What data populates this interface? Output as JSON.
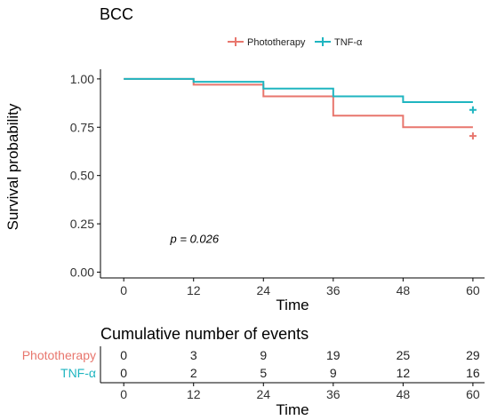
{
  "chart_data": [
    {
      "type": "line",
      "subtype": "kaplan-meier",
      "title": "BCC",
      "xlabel": "Time",
      "ylabel": "Survival probability",
      "xlim": [
        -4,
        62
      ],
      "ylim": [
        -0.03,
        1.05
      ],
      "xticks": [
        0,
        12,
        24,
        36,
        48,
        60
      ],
      "yticks": [
        0.0,
        0.25,
        0.5,
        0.75,
        1.0
      ],
      "ytick_labels": [
        "0.00",
        "0.25",
        "0.50",
        "0.75",
        "1.00"
      ],
      "grid": false,
      "legend": "top-center",
      "annotation": "p = 0.026",
      "annotation_at": [
        8,
        0.17
      ],
      "series": [
        {
          "name": "Phototherapy",
          "color": "#E8766D",
          "steps": [
            [
              0,
              1.0
            ],
            [
              12,
              0.97
            ],
            [
              24,
              0.91
            ],
            [
              36,
              0.81
            ],
            [
              48,
              0.75
            ],
            [
              60,
              0.75
            ]
          ],
          "censored": [
            [
              60,
              0.705
            ]
          ]
        },
        {
          "name": "TNF-α",
          "color": "#1FB5C0",
          "steps": [
            [
              0,
              1.0
            ],
            [
              12,
              0.985
            ],
            [
              24,
              0.95
            ],
            [
              36,
              0.91
            ],
            [
              48,
              0.88
            ],
            [
              60,
              0.88
            ]
          ],
          "censored": [
            [
              60,
              0.84
            ]
          ]
        }
      ]
    },
    {
      "type": "table",
      "title": "Cumulative number of events",
      "xlabel": "Time",
      "xticks": [
        0,
        12,
        24,
        36,
        48,
        60
      ],
      "rows": [
        {
          "name": "Phototherapy",
          "color": "#E8766D",
          "values": [
            "0",
            "3",
            "9",
            "19",
            "25",
            "29"
          ]
        },
        {
          "name": "TNF-α",
          "color": "#1FB5C0",
          "values": [
            "0",
            "2",
            "5",
            "9",
            "12",
            "16"
          ]
        }
      ]
    }
  ]
}
